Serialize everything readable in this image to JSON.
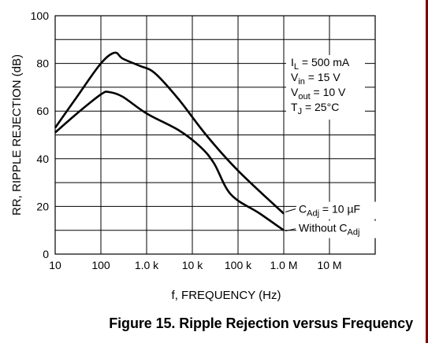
{
  "chart_data": {
    "type": "line",
    "x_scale": "log",
    "xlabel": "f, FREQUENCY (Hz)",
    "ylabel": "RR, RIPPLE REJECTION (dB)",
    "xlim": [
      10,
      100000000
    ],
    "ylim": [
      0,
      100
    ],
    "x_tick_values": [
      10,
      100,
      1000,
      10000,
      100000,
      1000000,
      10000000
    ],
    "x_tick_labels": [
      "10",
      "100",
      "1.0 k",
      "10 k",
      "100 k",
      "1.0 M",
      "10 M"
    ],
    "y_ticks": [
      0,
      20,
      40,
      60,
      80,
      100
    ],
    "grid": true,
    "annotation": {
      "lines": [
        {
          "main": "I",
          "sub": "L",
          "rest": " = 500 mA"
        },
        {
          "main": "V",
          "sub": "in",
          "rest": " = 15 V"
        },
        {
          "main": "V",
          "sub": "out",
          "rest": " = 10 V"
        },
        {
          "main": "T",
          "sub": "J",
          "rest": " = 25°C"
        }
      ]
    },
    "series": [
      {
        "name_main": "C",
        "name_sub": "Adj",
        "name_rest": " = 10 µF",
        "name_prefix": "",
        "x": [
          10,
          30,
          100,
          200,
          300,
          700,
          1500,
          5000,
          20000,
          100000,
          1000000
        ],
        "y": [
          53,
          66,
          80,
          84.5,
          82,
          79,
          76,
          65,
          50,
          35,
          17
        ]
      },
      {
        "name_prefix": "Without ",
        "name_main": "C",
        "name_sub": "Adj",
        "name_rest": "",
        "x": [
          10,
          30,
          100,
          150,
          300,
          1000,
          5000,
          15000,
          30000,
          70000,
          300000,
          1000000
        ],
        "y": [
          51,
          59,
          67,
          68,
          66,
          59,
          52,
          45,
          38,
          25,
          17,
          10
        ]
      }
    ],
    "title": "Figure 15. Ripple Rejection versus Frequency"
  }
}
